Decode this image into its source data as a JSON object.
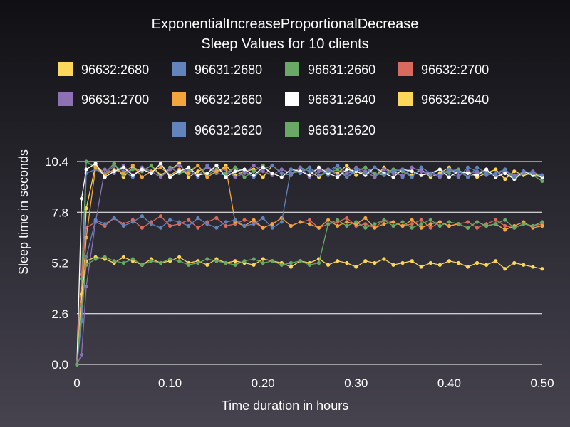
{
  "chart_data": {
    "type": "line",
    "title": "ExponentialIncreaseProportionalDecrease",
    "subtitle": "Sleep Values for 10 clients",
    "xlabel": "Time duration in hours",
    "ylabel": "Sleep time in seconds",
    "xlim": [
      0,
      0.5
    ],
    "ylim": [
      0,
      10.4
    ],
    "x_ticks": [
      "0",
      "0.10",
      "0.20",
      "0.30",
      "0.40",
      "0.50"
    ],
    "y_ticks": [
      "0.0",
      "2.6",
      "5.2",
      "7.8",
      "10.4"
    ],
    "grid": "horizontal",
    "legend_position": "top",
    "x": [
      0,
      0.005,
      0.01,
      0.02,
      0.03,
      0.04,
      0.05,
      0.06,
      0.07,
      0.08,
      0.09,
      0.1,
      0.11,
      0.12,
      0.13,
      0.14,
      0.15,
      0.16,
      0.17,
      0.18,
      0.19,
      0.2,
      0.21,
      0.22,
      0.23,
      0.24,
      0.25,
      0.26,
      0.27,
      0.28,
      0.29,
      0.3,
      0.31,
      0.32,
      0.33,
      0.34,
      0.35,
      0.36,
      0.37,
      0.38,
      0.39,
      0.4,
      0.41,
      0.42,
      0.43,
      0.44,
      0.45,
      0.46,
      0.47,
      0.48,
      0.49,
      0.5
    ],
    "series": [
      {
        "name": "96632:2680",
        "color": "#fdd75a",
        "values": [
          0,
          3.5,
          8.0,
          10.2,
          9.8,
          10.3,
          9.6,
          10.1,
          9.9,
          10.2,
          9.7,
          10.0,
          10.3,
          9.6,
          9.9,
          10.1,
          9.8,
          10.2,
          9.7,
          9.9,
          10.0,
          9.6,
          10.2,
          9.8,
          9.7,
          10.1,
          9.9,
          9.6,
          10.0,
          9.8,
          10.2,
          9.7,
          9.9,
          9.6,
          10.1,
          9.8,
          9.9,
          9.7,
          10.0,
          9.6,
          9.8,
          10.1,
          9.7,
          9.9,
          9.6,
          9.8,
          10.0,
          9.5,
          9.9,
          9.7,
          9.8,
          9.6
        ]
      },
      {
        "name": "96631:2680",
        "color": "#6283bb",
        "values": [
          0,
          2.3,
          9.8,
          10.0,
          9.7,
          10.2,
          9.9,
          9.6,
          10.1,
          9.8,
          10.3,
          9.7,
          9.9,
          10.0,
          9.6,
          10.2,
          9.8,
          9.7,
          10.1,
          9.9,
          9.6,
          10.0,
          10.2,
          9.8,
          9.7,
          10.1,
          9.9,
          10.0,
          9.7,
          10.2,
          9.8,
          9.9,
          10.1,
          9.7,
          9.8,
          10.0,
          9.6,
          10.1,
          9.9,
          9.7,
          10.0,
          9.8,
          9.6,
          10.1,
          9.9,
          9.7,
          9.8,
          10.0,
          9.6,
          9.9,
          9.8,
          9.7
        ]
      },
      {
        "name": "96631:2660",
        "color": "#6aa865",
        "values": [
          0,
          4.4,
          10.4,
          10.1,
          9.8,
          10.3,
          9.7,
          10.0,
          9.9,
          10.2,
          9.6,
          10.1,
          9.8,
          9.9,
          10.2,
          9.7,
          10.0,
          9.8,
          10.1,
          9.6,
          9.9,
          10.2,
          9.7,
          10.0,
          9.8,
          9.9,
          10.1,
          9.7,
          9.8,
          10.0,
          9.6,
          9.9,
          10.1,
          9.8,
          9.7,
          10.0,
          9.9,
          9.6,
          10.1,
          9.8,
          9.7,
          9.9,
          10.0,
          9.6,
          9.8,
          9.9,
          9.7,
          10.0,
          9.5,
          9.8,
          9.7,
          9.4
        ]
      },
      {
        "name": "96632:2700",
        "color": "#d86a5e",
        "values": [
          0,
          4.6,
          7.0,
          7.3,
          7.1,
          7.5,
          7.2,
          7.4,
          7.0,
          7.3,
          7.6,
          7.1,
          7.2,
          7.4,
          7.0,
          7.3,
          7.5,
          7.1,
          7.2,
          7.4,
          7.3,
          7.0,
          7.2,
          7.5,
          7.1,
          7.3,
          7.4,
          7.0,
          7.2,
          7.3,
          7.5,
          7.1,
          7.2,
          7.0,
          7.4,
          7.3,
          7.1,
          7.2,
          7.4,
          7.0,
          7.3,
          7.1,
          7.2,
          7.3,
          7.0,
          7.2,
          7.4,
          7.1,
          7.0,
          7.2,
          7.1,
          7.2
        ]
      },
      {
        "name": "96631:2700",
        "color": "#8d71b4",
        "values": [
          0,
          0.5,
          4.0,
          7.3,
          10.0,
          9.8,
          10.2,
          9.7,
          10.1,
          9.9,
          9.6,
          10.0,
          10.2,
          9.8,
          9.7,
          10.1,
          9.9,
          10.0,
          9.6,
          9.8,
          10.2,
          9.9,
          9.7,
          10.0,
          9.8,
          10.1,
          9.6,
          9.9,
          10.0,
          9.7,
          9.8,
          10.1,
          9.9,
          9.6,
          10.0,
          9.8,
          9.7,
          10.1,
          9.9,
          9.8,
          9.6,
          10.0,
          9.7,
          9.9,
          9.8,
          10.0,
          9.6,
          9.9,
          9.7,
          9.8,
          9.9,
          9.6
        ]
      },
      {
        "name": "96632:2660",
        "color": "#f3a53e",
        "values": [
          0,
          3.2,
          6.5,
          10.1,
          9.7,
          10.0,
          9.8,
          10.2,
          9.6,
          9.9,
          10.1,
          9.7,
          10.0,
          9.8,
          10.2,
          9.6,
          9.9,
          10.1,
          7.3,
          7.1,
          7.4,
          7.0,
          7.2,
          7.5,
          7.1,
          7.3,
          7.2,
          7.0,
          7.4,
          7.1,
          7.3,
          7.2,
          7.5,
          7.0,
          7.2,
          7.3,
          7.1,
          7.4,
          7.0,
          7.2,
          7.3,
          7.1,
          7.2,
          7.0,
          7.3,
          7.1,
          7.2,
          6.9,
          7.1,
          7.3,
          7.0,
          7.1
        ]
      },
      {
        "name": "96631:2640",
        "color": "#ffffff",
        "values": [
          0,
          8.5,
          10.0,
          10.3,
          9.6,
          9.9,
          10.1,
          9.7,
          10.0,
          9.8,
          10.3,
          9.6,
          9.9,
          10.1,
          9.7,
          9.8,
          10.2,
          9.6,
          9.9,
          10.0,
          9.7,
          10.1,
          9.8,
          9.6,
          10.0,
          9.9,
          9.7,
          10.1,
          9.8,
          9.6,
          10.0,
          9.9,
          9.7,
          10.1,
          9.8,
          9.6,
          10.0,
          9.9,
          9.7,
          9.8,
          10.0,
          9.6,
          9.9,
          9.8,
          9.7,
          10.0,
          9.6,
          9.8,
          9.5,
          9.9,
          9.7,
          9.6
        ]
      },
      {
        "name": "96632:2640",
        "color": "#fdd75a",
        "values": [
          0,
          3.6,
          5.3,
          5.5,
          5.4,
          5.2,
          5.5,
          5.3,
          5.1,
          5.4,
          5.2,
          5.3,
          5.5,
          5.2,
          5.3,
          5.1,
          5.4,
          5.2,
          5.3,
          5.2,
          5.1,
          5.4,
          5.3,
          5.2,
          5.0,
          5.3,
          5.2,
          5.4,
          5.1,
          5.3,
          5.2,
          5.0,
          5.3,
          5.2,
          5.4,
          5.1,
          5.2,
          5.3,
          5.0,
          5.2,
          5.1,
          5.3,
          5.2,
          5.0,
          5.2,
          5.1,
          5.3,
          4.9,
          5.2,
          5.1,
          5.0,
          4.9
        ]
      },
      {
        "name": "96632:2620",
        "color": "#6283bb",
        "values": [
          0,
          2.2,
          5.5,
          7.4,
          7.2,
          7.5,
          7.1,
          7.3,
          7.6,
          7.2,
          7.0,
          7.4,
          7.3,
          7.1,
          7.5,
          7.2,
          7.0,
          7.3,
          7.4,
          7.1,
          7.2,
          7.5,
          7.0,
          7.3,
          10.0,
          9.8,
          10.1,
          9.7,
          9.9,
          10.2,
          9.6,
          10.0,
          9.8,
          10.1,
          9.7,
          9.9,
          10.0,
          9.6,
          10.1,
          9.8,
          9.7,
          10.0,
          9.9,
          9.6,
          10.1,
          9.8,
          9.7,
          10.0,
          9.6,
          9.9,
          9.8,
          9.7
        ]
      },
      {
        "name": "96631:2620",
        "color": "#6aa865",
        "values": [
          0,
          3.0,
          5.1,
          5.4,
          5.5,
          5.3,
          5.2,
          5.4,
          5.1,
          5.3,
          5.2,
          5.4,
          5.3,
          5.1,
          5.2,
          5.4,
          5.3,
          5.2,
          5.1,
          5.3,
          5.4,
          5.2,
          5.3,
          5.1,
          5.2,
          5.3,
          5.1,
          5.2,
          7.2,
          7.4,
          7.1,
          7.3,
          7.0,
          7.2,
          7.4,
          7.1,
          7.3,
          7.0,
          7.2,
          7.4,
          7.1,
          7.3,
          7.2,
          7.0,
          7.3,
          7.1,
          7.2,
          7.4,
          7.0,
          7.2,
          7.1,
          7.3
        ]
      }
    ]
  }
}
